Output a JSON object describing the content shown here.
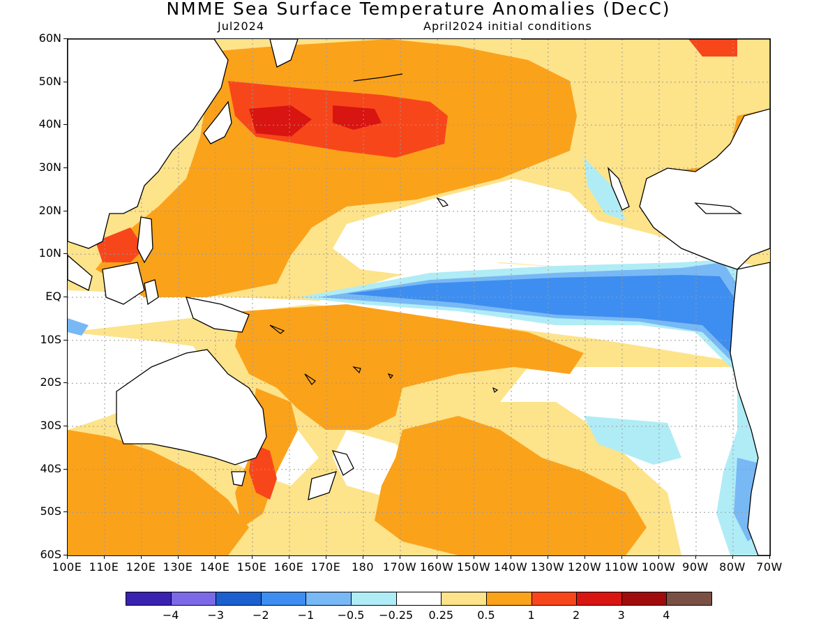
{
  "title": "NMME Sea Surface Temperature Anomalies (DecC)",
  "valid_month": "Jul2024",
  "init_note": "April2024 initial conditions",
  "lat_labels": [
    "60N",
    "50N",
    "40N",
    "30N",
    "20N",
    "10N",
    "EQ",
    "10S",
    "20S",
    "30S",
    "40S",
    "50S",
    "60S"
  ],
  "lon_labels": [
    "100E",
    "110E",
    "120E",
    "130E",
    "140E",
    "150E",
    "160E",
    "170E",
    "180",
    "170W",
    "160W",
    "150W",
    "140W",
    "130W",
    "120W",
    "110W",
    "100W",
    "90W",
    "80W",
    "70W"
  ],
  "colorbar": {
    "colors": [
      "#3a22b0",
      "#7b6ae8",
      "#1c60d0",
      "#3d8ef0",
      "#78b8f5",
      "#b0ecf6",
      "#ffffff",
      "#fde38a",
      "#fba21b",
      "#f8461b",
      "#d81510",
      "#a00b0b",
      "#7a5044"
    ],
    "labels": [
      "−4",
      "−3",
      "−2",
      "−1",
      "−0.5",
      "−0.25",
      "0.25",
      "0.5",
      "1",
      "2",
      "3",
      "4"
    ]
  },
  "colors": {
    "land": "#ffffff",
    "coast": "#000000",
    "grid": "#9a9a9a"
  }
}
